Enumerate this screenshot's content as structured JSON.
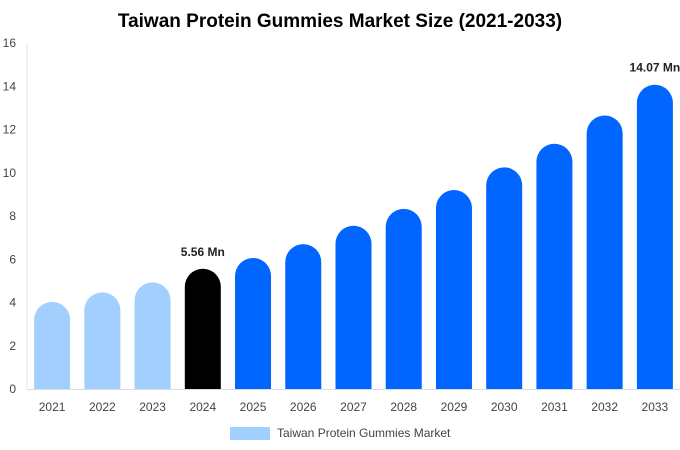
{
  "chart_data": {
    "type": "bar",
    "title": "Taiwan Protein Gummies Market Size (2021-2033)",
    "categories": [
      "2021",
      "2022",
      "2023",
      "2024",
      "2025",
      "2026",
      "2027",
      "2028",
      "2029",
      "2030",
      "2031",
      "2032",
      "2033"
    ],
    "values": [
      4.03,
      4.47,
      4.93,
      5.56,
      6.06,
      6.7,
      7.55,
      8.33,
      9.2,
      10.25,
      11.34,
      12.65,
      14.07
    ],
    "bar_colors": [
      "#a3cfff",
      "#a3cfff",
      "#a3cfff",
      "#000000",
      "#0066ff",
      "#0066ff",
      "#0066ff",
      "#0066ff",
      "#0066ff",
      "#0066ff",
      "#0066ff",
      "#0066ff",
      "#0066ff"
    ],
    "data_labels": [
      {
        "category": "2024",
        "text": "5.56 Mn"
      },
      {
        "category": "2033",
        "text": "14.07 Mn"
      }
    ],
    "ylim": [
      0,
      16
    ],
    "y_ticks": [
      0,
      2,
      4,
      6,
      8,
      10,
      12,
      14,
      16
    ],
    "grid": false,
    "legend": {
      "position": "bottom",
      "label": "Taiwan Protein Gummies Market",
      "color": "#a3cfff"
    }
  }
}
